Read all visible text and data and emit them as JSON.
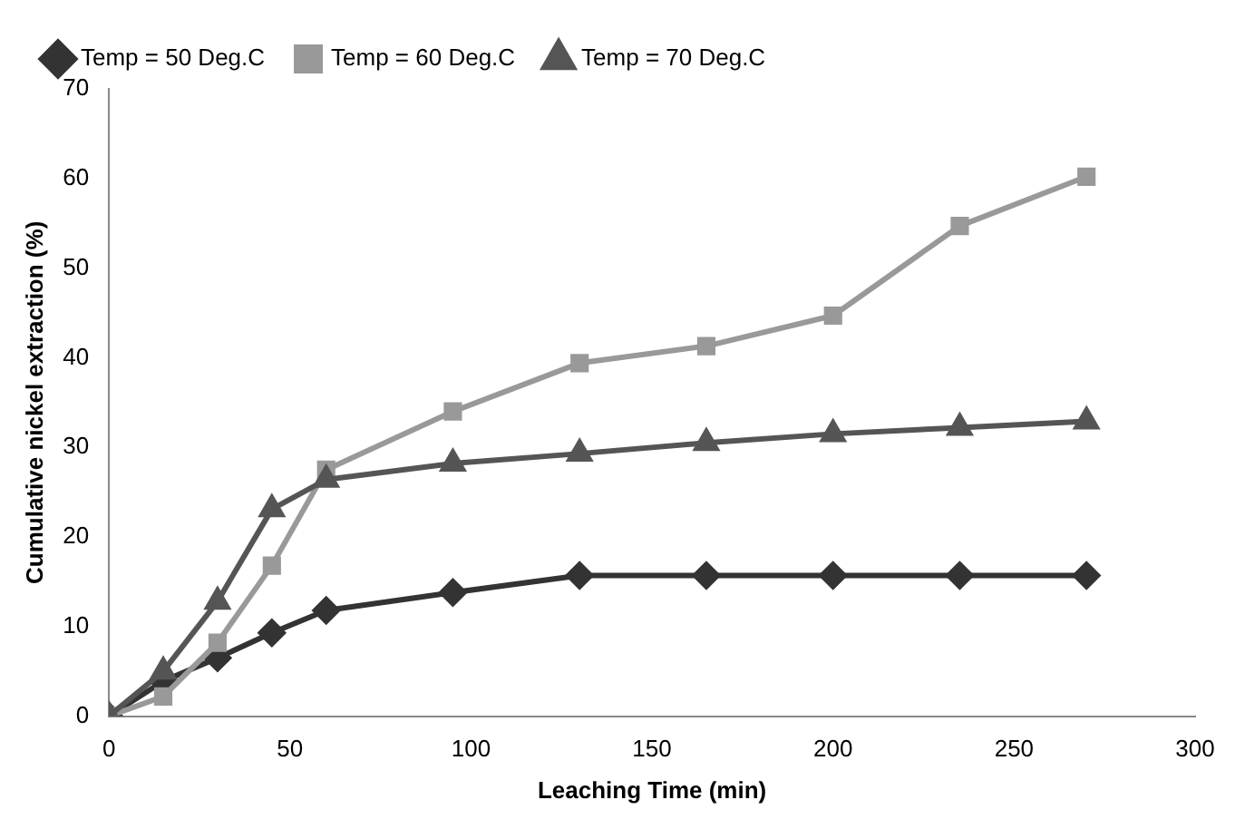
{
  "chart_data": {
    "type": "line",
    "xlabel": "Leaching Time (min)",
    "ylabel": "Cumulative nickel extraction (%)",
    "x": [
      0,
      15,
      30,
      45,
      60,
      95,
      130,
      165,
      200,
      235,
      270
    ],
    "series": [
      {
        "name": "Temp = 50 Deg.C",
        "color": "#333333",
        "marker": "diamond",
        "values": [
          0,
          3.9,
          6.5,
          9.3,
          11.8,
          13.8,
          15.7,
          15.7,
          15.7,
          15.7,
          15.7
        ]
      },
      {
        "name": "Temp = 60 Deg.C",
        "color": "#999999",
        "marker": "square",
        "values": [
          0,
          2.2,
          8.2,
          16.8,
          27.5,
          34,
          39.4,
          41.3,
          44.7,
          54.7,
          60.2
        ]
      },
      {
        "name": "Temp = 70 Deg.C",
        "color": "#555555",
        "marker": "triangle",
        "values": [
          0,
          5,
          12.8,
          23.1,
          26.4,
          28.2,
          29.3,
          30.5,
          31.5,
          32.2,
          32.9
        ]
      }
    ],
    "xlim": [
      0,
      300
    ],
    "xticks": [
      0,
      50,
      100,
      150,
      200,
      250,
      300
    ],
    "ylim": [
      0,
      70
    ],
    "yticks": [
      0,
      10,
      20,
      30,
      40,
      50,
      60,
      70
    ],
    "grid": false,
    "legend": "top"
  }
}
